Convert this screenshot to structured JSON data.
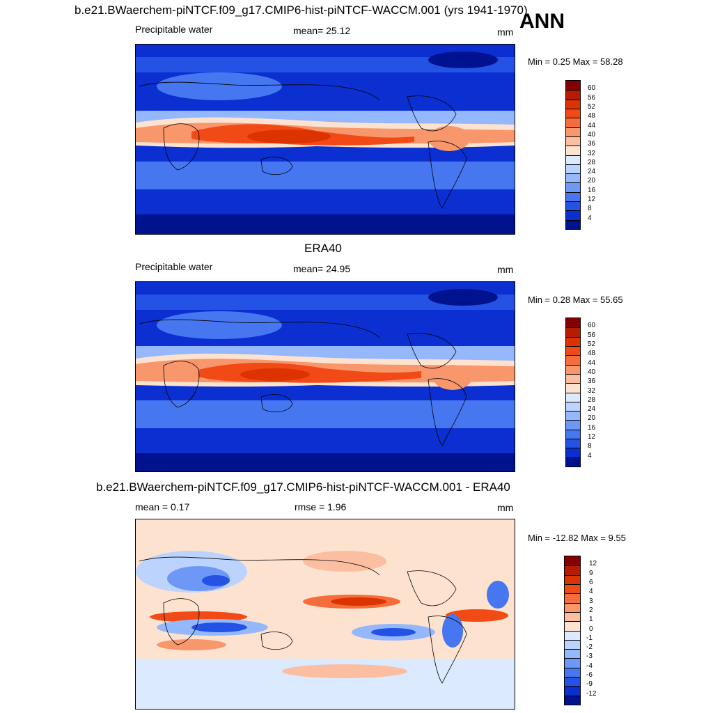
{
  "panels": [
    {
      "title": "b.e21.BWaerchem-piNTCF.f09_g17.CMIP6-hist-piNTCF-WACCM.001 (yrs 1941-1970)",
      "season": "ANN",
      "left_label": "Precipitable water",
      "center_label": "mean=  25.12",
      "right_label": "mm",
      "minmax": "Min =   0.25 Max =  58.28",
      "colorbar": {
        "labels": [
          "60",
          "56",
          "52",
          "48",
          "44",
          "40",
          "36",
          "32",
          "28",
          "24",
          "20",
          "16",
          "12",
          "8",
          "4"
        ],
        "colors": [
          "#850000",
          "#b81c00",
          "#dd3300",
          "#f24a16",
          "#f56d3c",
          "#f8966c",
          "#fbbea0",
          "#fde3cf",
          "#dceaff",
          "#bcd3fd",
          "#94b8fb",
          "#6d98f6",
          "#4677f0",
          "#2452e5",
          "#0b2fd0",
          "#00128e"
        ]
      }
    },
    {
      "title": "ERA40",
      "left_label": "Precipitable water",
      "center_label": "mean=  24.95",
      "right_label": "mm",
      "minmax": "Min =   0.28 Max =  55.65",
      "colorbar": {
        "labels": [
          "60",
          "56",
          "52",
          "48",
          "44",
          "40",
          "36",
          "32",
          "28",
          "24",
          "20",
          "16",
          "12",
          "8",
          "4"
        ],
        "colors": [
          "#850000",
          "#b81c00",
          "#dd3300",
          "#f24a16",
          "#f56d3c",
          "#f8966c",
          "#fbbea0",
          "#fde3cf",
          "#dceaff",
          "#bcd3fd",
          "#94b8fb",
          "#6d98f6",
          "#4677f0",
          "#2452e5",
          "#0b2fd0",
          "#00128e"
        ]
      }
    },
    {
      "title": "b.e21.BWaerchem-piNTCF.f09_g17.CMIP6-hist-piNTCF-WACCM.001 - ERA40",
      "left_label": "mean =   0.17",
      "center_label": "rmse =   1.96",
      "right_label": "mm",
      "minmax": "Min = -12.82 Max =   9.55",
      "colorbar": {
        "labels": [
          "12",
          "9",
          "6",
          "4",
          "3",
          "2",
          "1",
          "0",
          "-1",
          "-2",
          "-3",
          "-4",
          "-6",
          "-9",
          "-12"
        ],
        "colors": [
          "#850000",
          "#b81c00",
          "#dd3300",
          "#f24a16",
          "#f56d3c",
          "#f8966c",
          "#fbbea0",
          "#fde3cf",
          "#dceaff",
          "#bcd3fd",
          "#94b8fb",
          "#6d98f6",
          "#4677f0",
          "#2452e5",
          "#0b2fd0",
          "#00128e"
        ]
      }
    }
  ]
}
